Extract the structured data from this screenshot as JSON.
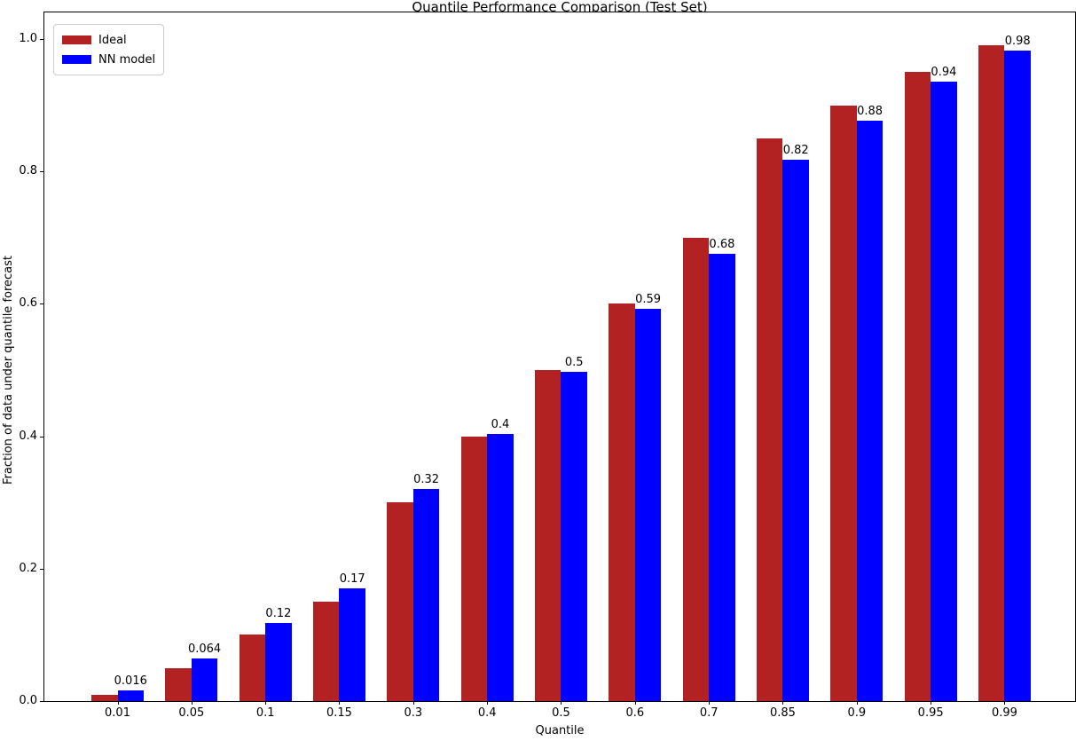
{
  "chart_data": {
    "type": "bar",
    "title": "Quantile Performance Comparison (Test Set)",
    "xlabel": "Quantile",
    "ylabel": "Fraction of data under quantile forecast",
    "categories": [
      "0.01",
      "0.05",
      "0.1",
      "0.15",
      "0.3",
      "0.4",
      "0.5",
      "0.6",
      "0.7",
      "0.85",
      "0.9",
      "0.95",
      "0.99"
    ],
    "series": [
      {
        "name": "Ideal",
        "color": "#b22222",
        "values": [
          0.01,
          0.05,
          0.1,
          0.15,
          0.3,
          0.4,
          0.5,
          0.6,
          0.7,
          0.85,
          0.9,
          0.95,
          0.99
        ]
      },
      {
        "name": "NN model",
        "color": "#0000ff",
        "values": [
          0.016,
          0.064,
          0.118,
          0.17,
          0.32,
          0.403,
          0.497,
          0.592,
          0.675,
          0.818,
          0.877,
          0.936,
          0.983
        ]
      }
    ],
    "bar_labels": [
      "0.016",
      "0.064",
      "0.12",
      "0.17",
      "0.32",
      "0.4",
      "0.5",
      "0.59",
      "0.68",
      "0.82",
      "0.88",
      "0.94",
      "0.98"
    ],
    "yticks": {
      "values": [
        0.0,
        0.2,
        0.4,
        0.6,
        0.8,
        1.0
      ],
      "labels": [
        "0.0",
        "0.2",
        "0.4",
        "0.6",
        "0.8",
        "1.0"
      ]
    },
    "ylim": [
      0,
      1.04
    ],
    "grid": false,
    "legend_position": "upper-left",
    "axis_color": "#000000",
    "background": "#ffffff"
  }
}
